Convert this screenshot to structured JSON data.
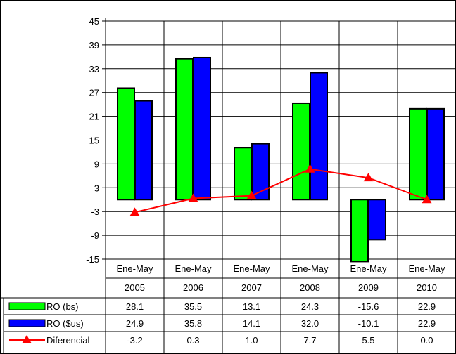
{
  "chart_data": {
    "type": "bar",
    "categories": [
      {
        "line1": "Ene-May",
        "line2": "2005"
      },
      {
        "line1": "Ene-May",
        "line2": "2006"
      },
      {
        "line1": "Ene-May",
        "line2": "2007"
      },
      {
        "line1": "Ene-May",
        "line2": "2008"
      },
      {
        "line1": "Ene-May",
        "line2": "2009"
      },
      {
        "line1": "Ene-May",
        "line2": "2010"
      }
    ],
    "series": [
      {
        "name": "RO (bs)",
        "kind": "bar",
        "color": "#00ff00",
        "values": [
          28.1,
          35.5,
          13.1,
          24.3,
          -15.6,
          22.9
        ],
        "labels": [
          "28.1",
          "35.5",
          "13.1",
          "24.3",
          "-15.6",
          "22.9"
        ]
      },
      {
        "name": "RO ($us)",
        "kind": "bar",
        "color": "#0000ff",
        "values": [
          24.9,
          35.8,
          14.1,
          32.0,
          -10.1,
          22.9
        ],
        "labels": [
          "24.9",
          "35.8",
          "14.1",
          "32.0",
          "-10.1",
          "22.9"
        ]
      },
      {
        "name": "Diferencial",
        "kind": "line",
        "marker": "triangle",
        "color": "#ff0000",
        "values": [
          -3.2,
          0.3,
          1.0,
          7.7,
          5.5,
          0.0
        ],
        "labels": [
          "-3.2",
          "0.3",
          "1.0",
          "7.7",
          "5.5",
          "0.0"
        ]
      }
    ],
    "ylim": [
      -15,
      45
    ],
    "yticks": [
      "45",
      "39",
      "33",
      "27",
      "21",
      "15",
      "9",
      "3",
      "-3",
      "-9",
      "-15"
    ],
    "grid": true,
    "legend": "data-table"
  }
}
